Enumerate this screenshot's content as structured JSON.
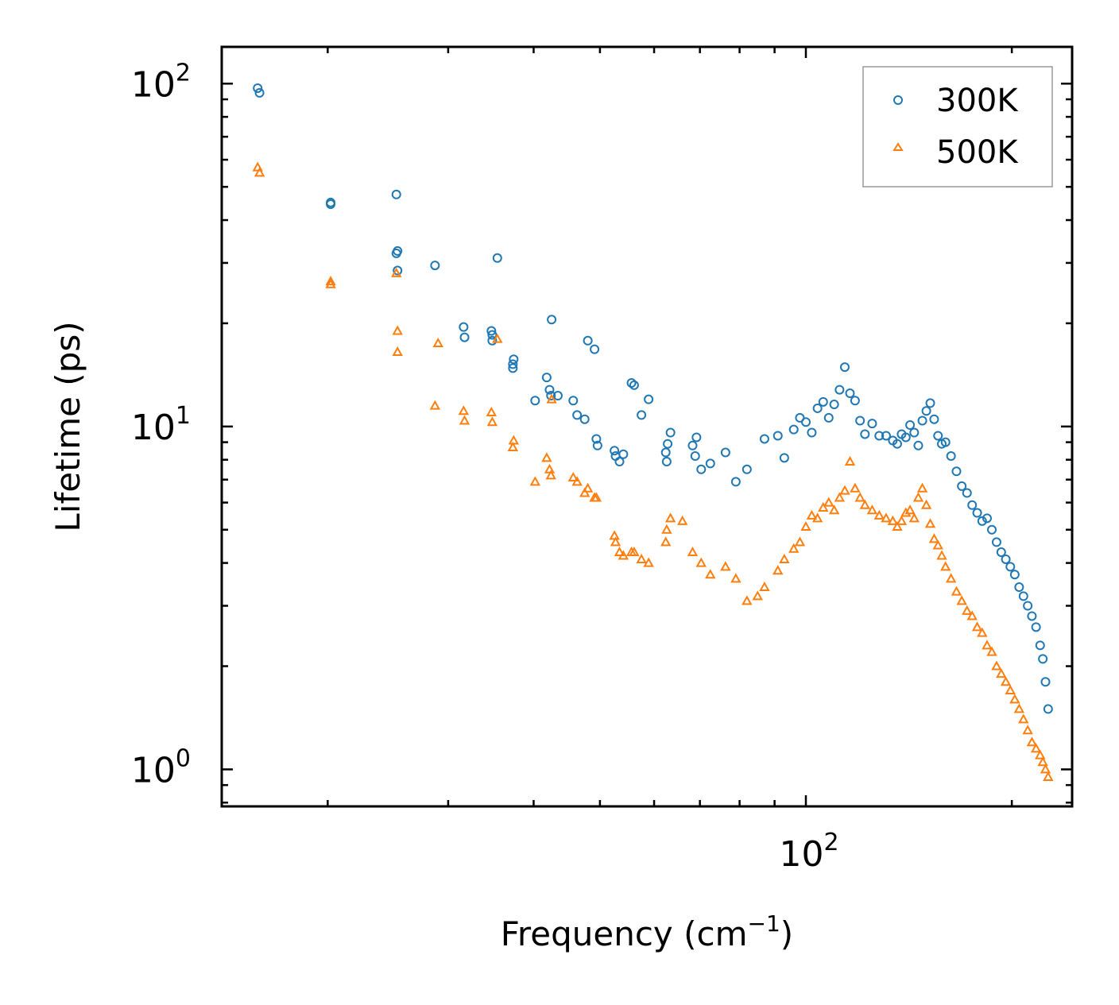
{
  "chart_data": {
    "type": "scatter",
    "title": "",
    "xscale": "log",
    "yscale": "log",
    "xlabel": "Frequency (cm",
    "xlabel_sup": "−1",
    "xlabel_end": ")",
    "ylabel": "Lifetime (ps)",
    "xlim": [
      14,
      245
    ],
    "ylim": [
      0.78,
      128
    ],
    "x_ticks": [
      {
        "value": 100,
        "base": "10",
        "exp": "2"
      }
    ],
    "y_ticks": [
      {
        "value": 1,
        "base": "10",
        "exp": "0"
      },
      {
        "value": 10,
        "base": "10",
        "exp": "1"
      },
      {
        "value": 100,
        "base": "10",
        "exp": "2"
      }
    ],
    "legend_position": "top-right",
    "series": [
      {
        "name": "300K",
        "marker": "circle",
        "color": "#1f77b4",
        "x": [
          15.8,
          15.9,
          20.2,
          20.2,
          25.2,
          25.3,
          25.3,
          25.2,
          28.7,
          31.6,
          31.7,
          34.7,
          34.8,
          34.8,
          35.4,
          37.4,
          37.3,
          37.3,
          40.2,
          41.8,
          42.2,
          42.4,
          42.5,
          43.4,
          45.7,
          46.3,
          47.5,
          48.0,
          49.1,
          49.4,
          49.6,
          52.5,
          52.7,
          53.4,
          54.1,
          55.6,
          56.1,
          57.5,
          58.9,
          62.4,
          62.6,
          62.8,
          63.4,
          68.3,
          68.9,
          69.2,
          70.3,
          72.5,
          76.3,
          79.0,
          82.0,
          87.0,
          91.0,
          93.0,
          96.0,
          98.0,
          100.0,
          102.0,
          104.0,
          106.0,
          108.0,
          110.0,
          112.0,
          114.0,
          116.0,
          118.0,
          120.0,
          122.0,
          125.0,
          128.0,
          131.0,
          134.0,
          136.0,
          138.0,
          140.0,
          142.0,
          144.0,
          146.0,
          148.0,
          150.0,
          152.0,
          154.0,
          156.0,
          158.0,
          160.0,
          163.0,
          166.0,
          169.0,
          172.0,
          175.0,
          178.0,
          181.0,
          184.0,
          187.0,
          190.0,
          193.0,
          196.0,
          199.0,
          202.0,
          205.0,
          208.0,
          211.0,
          214.0,
          217.0,
          220.0,
          222.0,
          224.0,
          226.0
        ],
        "y": [
          97,
          94,
          45,
          44.5,
          47.5,
          32.5,
          28.5,
          32,
          29.5,
          19.5,
          18.2,
          19,
          17.8,
          18.5,
          31,
          15.7,
          15.2,
          14.8,
          11.9,
          13.9,
          12.8,
          12.3,
          20.5,
          12.3,
          11.9,
          10.8,
          10.5,
          17.8,
          16.8,
          9.2,
          8.8,
          8.5,
          8.2,
          7.9,
          8.3,
          13.4,
          13.2,
          10.8,
          12,
          8.4,
          7.9,
          8.9,
          9.6,
          8.8,
          8.2,
          9.3,
          7.5,
          7.8,
          8.4,
          6.9,
          7.5,
          9.2,
          9.4,
          8.1,
          9.8,
          10.6,
          10.3,
          9.6,
          11.3,
          11.8,
          10.6,
          11.6,
          12.8,
          14.9,
          12.5,
          11.9,
          10.4,
          9.5,
          10.2,
          9.4,
          9.4,
          9.1,
          8.9,
          9.5,
          9.3,
          10.1,
          9.6,
          8.8,
          10.4,
          11.1,
          11.7,
          10.5,
          9.4,
          8.9,
          9.0,
          8.2,
          7.4,
          6.7,
          6.4,
          5.9,
          5.6,
          5.3,
          5.4,
          5.0,
          4.6,
          4.3,
          4.1,
          3.9,
          3.7,
          3.4,
          3.2,
          3.0,
          2.8,
          2.6,
          2.3,
          2.1,
          1.8,
          1.5
        ]
      },
      {
        "name": "500K",
        "marker": "triangle",
        "color": "#ff7f0e",
        "x": [
          15.8,
          15.9,
          20.2,
          20.2,
          25.2,
          25.3,
          25.3,
          28.7,
          29.0,
          31.6,
          31.7,
          34.7,
          34.8,
          35.4,
          37.4,
          37.3,
          40.2,
          41.8,
          42.2,
          42.4,
          42.5,
          45.7,
          46.3,
          47.5,
          48.0,
          49.1,
          49.4,
          52.5,
          52.7,
          53.4,
          54.1,
          55.6,
          56.1,
          57.5,
          58.9,
          62.4,
          62.6,
          63.4,
          66.0,
          68.3,
          70.3,
          72.5,
          76.3,
          79.0,
          82.0,
          85.0,
          87.0,
          91.0,
          93.0,
          96.0,
          98.0,
          100.0,
          102.0,
          104.0,
          106.0,
          108.0,
          110.0,
          112.0,
          114.0,
          116.0,
          118.0,
          120.0,
          122.0,
          125.0,
          128.0,
          131.0,
          134.0,
          136.0,
          138.0,
          140.0,
          142.0,
          144.0,
          146.0,
          148.0,
          150.0,
          152.0,
          154.0,
          156.0,
          158.0,
          160.0,
          163.0,
          166.0,
          169.0,
          172.0,
          175.0,
          178.0,
          181.0,
          184.0,
          187.0,
          190.0,
          193.0,
          196.0,
          199.0,
          202.0,
          205.0,
          208.0,
          211.0,
          214.0,
          217.0,
          220.0,
          222.0,
          224.0,
          226.0
        ],
        "y": [
          57,
          55,
          26.5,
          26,
          28,
          19,
          16.5,
          11.5,
          17.5,
          11.1,
          10.4,
          11,
          10.3,
          18,
          9.1,
          8.7,
          6.9,
          8.1,
          7.5,
          7.2,
          12,
          7.1,
          6.9,
          6.4,
          6.6,
          6.2,
          6.2,
          4.8,
          4.6,
          4.3,
          4.2,
          4.3,
          4.3,
          4.1,
          4.0,
          4.6,
          5.0,
          5.4,
          5.3,
          4.3,
          4.0,
          3.7,
          3.9,
          3.6,
          3.1,
          3.2,
          3.4,
          3.8,
          4.1,
          4.4,
          4.6,
          5.1,
          5.5,
          5.4,
          5.8,
          6.0,
          5.7,
          6.2,
          6.5,
          7.9,
          6.6,
          6.2,
          5.9,
          5.7,
          5.5,
          5.4,
          5.3,
          5.1,
          5.3,
          5.6,
          5.7,
          5.4,
          6.2,
          6.6,
          5.9,
          5.2,
          4.7,
          4.5,
          4.2,
          3.9,
          3.6,
          3.3,
          3.1,
          2.9,
          2.8,
          2.6,
          2.5,
          2.3,
          2.2,
          2.0,
          1.9,
          1.8,
          1.7,
          1.6,
          1.5,
          1.4,
          1.3,
          1.2,
          1.15,
          1.1,
          1.05,
          1.0,
          0.95
        ]
      }
    ]
  }
}
